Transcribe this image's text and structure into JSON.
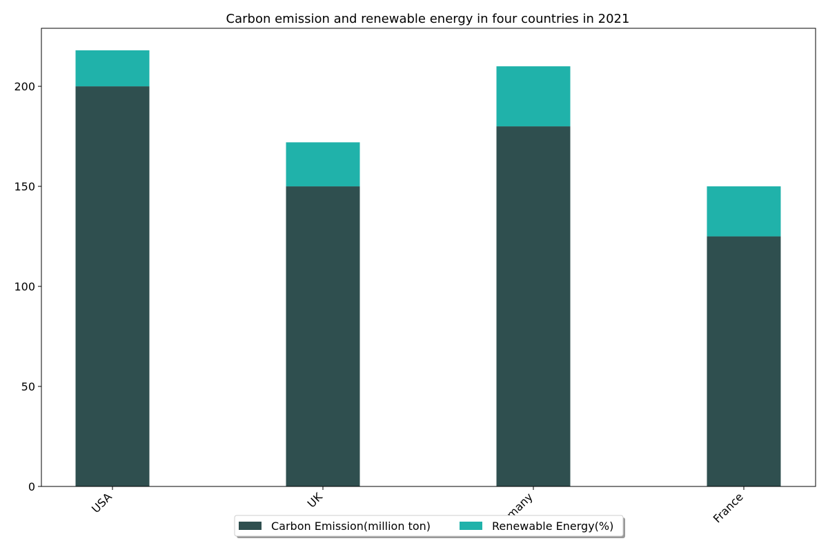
{
  "chart_data": {
    "type": "stacked_bar",
    "title": "Carbon emission and renewable energy in four countries in 2021",
    "categories": [
      "USA",
      "UK",
      "Germany",
      "France"
    ],
    "series": [
      {
        "name": "Carbon Emission(million ton)",
        "color": "#2f4f4f",
        "values": [
          200,
          150,
          180,
          125
        ]
      },
      {
        "name": "Renewable Energy(%)",
        "color": "#20b2aa",
        "values": [
          18,
          22,
          30,
          25
        ]
      }
    ],
    "ylim": [
      0,
      229
    ],
    "yticks": [
      0,
      50,
      100,
      150,
      200
    ],
    "grid": false,
    "legend": "bottom"
  }
}
